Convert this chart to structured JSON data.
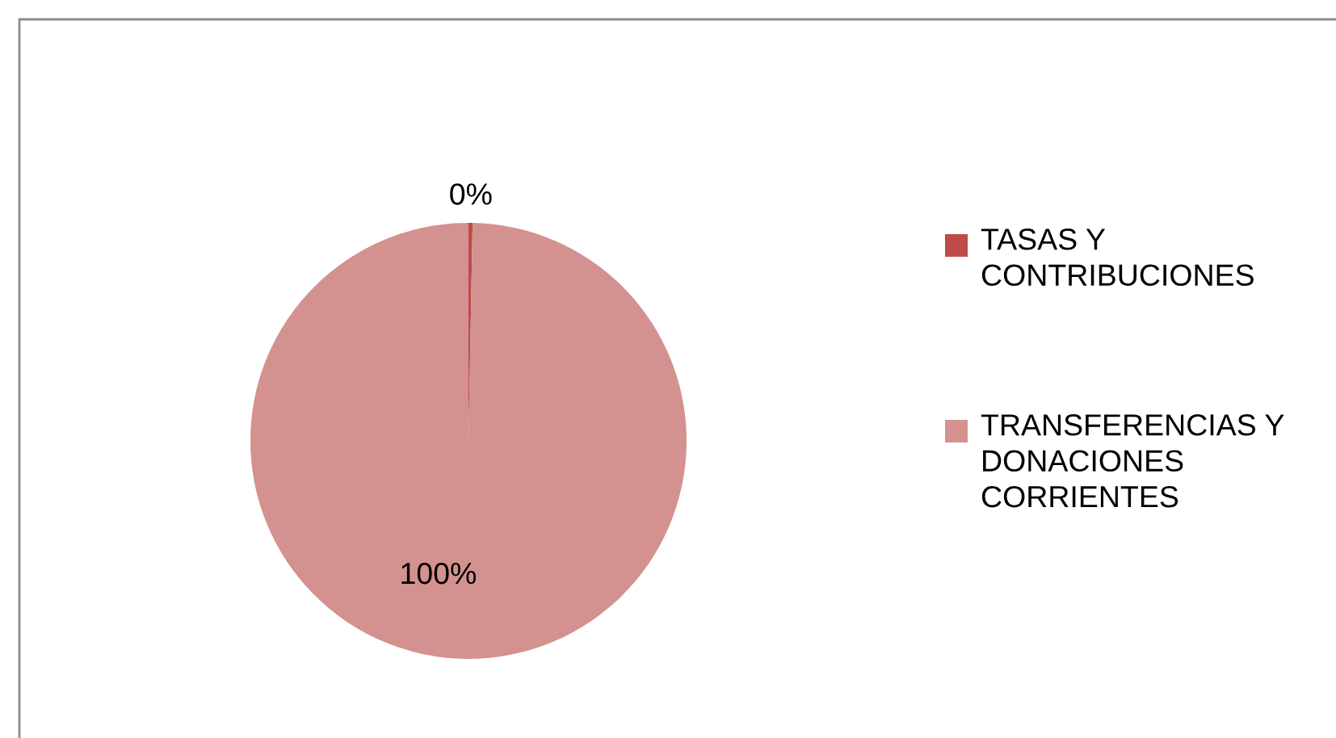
{
  "chart_data": {
    "type": "pie",
    "categories": [
      "TASAS Y CONTRIBUCIONES",
      "TRANSFERENCIAS Y DONACIONES CORRIENTES"
    ],
    "values": [
      0.3,
      99.7
    ],
    "value_labels": [
      "0%",
      "100%"
    ],
    "colors": [
      "#be4b48",
      "#d3928f"
    ],
    "legend": "right"
  }
}
